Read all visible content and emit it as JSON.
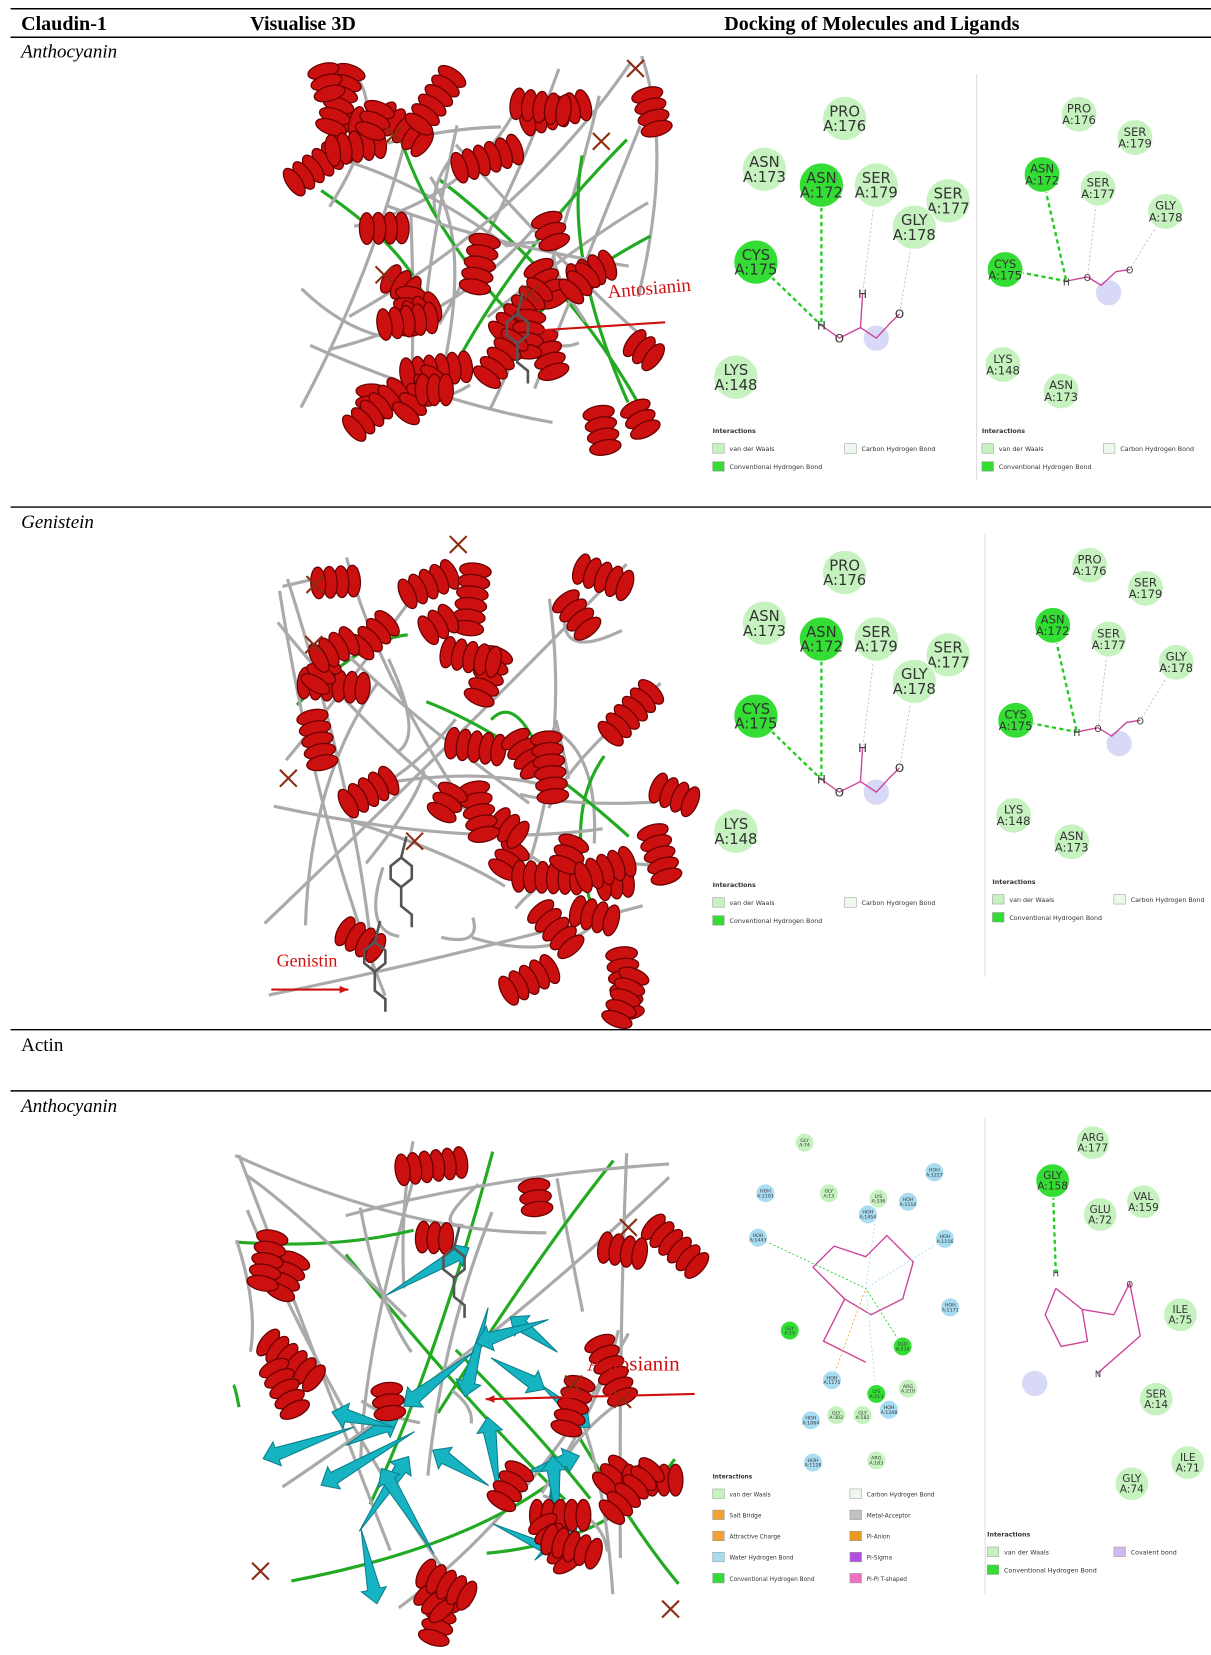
{
  "header": {
    "col1": "Claudin-1",
    "col2": "Visualise 3D",
    "col3": "Docking of Molecules and Ligands"
  },
  "rows": [
    {
      "label": "Anthocyanin",
      "annotation": "Antosianin",
      "docking": [
        {
          "residues": [
            {
              "name": "ASN",
              "pos": "A:173",
              "color": "#c6f2c0"
            },
            {
              "name": "ASN",
              "pos": "A:172",
              "color": "#33dd33"
            },
            {
              "name": "PRO",
              "pos": "A:176",
              "color": "#c6f2c0"
            },
            {
              "name": "SER",
              "pos": "A:179",
              "color": "#c6f2c0"
            },
            {
              "name": "SER",
              "pos": "A:177",
              "color": "#c6f2c0"
            },
            {
              "name": "GLY",
              "pos": "A:178",
              "color": "#c6f2c0"
            },
            {
              "name": "CYS",
              "pos": "A:175",
              "color": "#33dd33"
            },
            {
              "name": "LYS",
              "pos": "A:148",
              "color": "#c6f2c0"
            }
          ],
          "atoms": [
            "H",
            "O",
            "H",
            "O"
          ],
          "legend_title": "Interactions",
          "legend": [
            {
              "label": "van der Waals",
              "color": "#c6f2c0"
            },
            {
              "label": "Carbon Hydrogen Bond",
              "color": "#eef9ee"
            },
            {
              "label": "Conventional Hydrogen Bond",
              "color": "#33dd33"
            }
          ]
        },
        {
          "residues": [
            {
              "name": "PRO",
              "pos": "A:176",
              "color": "#c6f2c0"
            },
            {
              "name": "SER",
              "pos": "A:179",
              "color": "#c6f2c0"
            },
            {
              "name": "ASN",
              "pos": "A:172",
              "color": "#33dd33"
            },
            {
              "name": "SER",
              "pos": "A:177",
              "color": "#c6f2c0"
            },
            {
              "name": "GLY",
              "pos": "A:178",
              "color": "#c6f2c0"
            },
            {
              "name": "CYS",
              "pos": "A:175",
              "color": "#33dd33"
            },
            {
              "name": "LYS",
              "pos": "A:148",
              "color": "#c6f2c0"
            },
            {
              "name": "ASN",
              "pos": "A:173",
              "color": "#c6f2c0"
            }
          ],
          "atoms": [
            "H",
            "O",
            "O"
          ],
          "legend_title": "Interactions",
          "legend": [
            {
              "label": "van der Waals",
              "color": "#c6f2c0"
            },
            {
              "label": "Carbon Hydrogen Bond",
              "color": "#eef9ee"
            },
            {
              "label": "Conventional Hydrogen Bond",
              "color": "#33dd33"
            }
          ]
        }
      ]
    },
    {
      "label": "Genistein",
      "annotation": "Genistin",
      "docking": [
        {
          "residues": [
            {
              "name": "ASN",
              "pos": "A:173",
              "color": "#c6f2c0"
            },
            {
              "name": "ASN",
              "pos": "A:172",
              "color": "#33dd33"
            },
            {
              "name": "PRO",
              "pos": "A:176",
              "color": "#c6f2c0"
            },
            {
              "name": "SER",
              "pos": "A:179",
              "color": "#c6f2c0"
            },
            {
              "name": "SER",
              "pos": "A:177",
              "color": "#c6f2c0"
            },
            {
              "name": "GLY",
              "pos": "A:178",
              "color": "#c6f2c0"
            },
            {
              "name": "CYS",
              "pos": "A:175",
              "color": "#33dd33"
            },
            {
              "name": "LYS",
              "pos": "A:148",
              "color": "#c6f2c0"
            }
          ],
          "atoms": [
            "H",
            "O",
            "H",
            "O"
          ],
          "legend_title": "Interactions",
          "legend": [
            {
              "label": "van der Waals",
              "color": "#c6f2c0"
            },
            {
              "label": "Carbon Hydrogen Bond",
              "color": "#eef9ee"
            },
            {
              "label": "Conventional Hydrogen Bond",
              "color": "#33dd33"
            }
          ]
        },
        {
          "residues": [
            {
              "name": "PRO",
              "pos": "A:176",
              "color": "#c6f2c0"
            },
            {
              "name": "SER",
              "pos": "A:179",
              "color": "#c6f2c0"
            },
            {
              "name": "ASN",
              "pos": "A:172",
              "color": "#33dd33"
            },
            {
              "name": "SER",
              "pos": "A:177",
              "color": "#c6f2c0"
            },
            {
              "name": "GLY",
              "pos": "A:178",
              "color": "#c6f2c0"
            },
            {
              "name": "CYS",
              "pos": "A:175",
              "color": "#33dd33"
            },
            {
              "name": "LYS",
              "pos": "A:148",
              "color": "#c6f2c0"
            },
            {
              "name": "ASN",
              "pos": "A:173",
              "color": "#c6f2c0"
            }
          ],
          "atoms": [
            "H",
            "O",
            "O"
          ],
          "legend_title": "Interactions",
          "legend": [
            {
              "label": "van der Waals",
              "color": "#c6f2c0"
            },
            {
              "label": "Carbon Hydrogen Bond",
              "color": "#eef9ee"
            },
            {
              "label": "Conventional Hydrogen Bond",
              "color": "#33dd33"
            }
          ]
        }
      ]
    },
    {
      "group": "Actin"
    },
    {
      "label": "Anthocyanin",
      "annotation": "Antosianin",
      "docking": [
        {
          "residues": [
            {
              "name": "GLY",
              "pos": "A:74",
              "color": "#c6f2c0"
            },
            {
              "name": "HOH",
              "pos": "A:1227",
              "color": "#a8dcf0"
            },
            {
              "name": "GLY",
              "pos": "A:13",
              "color": "#c6f2c0"
            },
            {
              "name": "LYS",
              "pos": "A:336",
              "color": "#c6f2c0"
            },
            {
              "name": "HOH",
              "pos": "A:1110",
              "color": "#a8dcf0"
            },
            {
              "name": "HOH",
              "pos": "A:1454",
              "color": "#a8dcf0"
            },
            {
              "name": "HOH",
              "pos": "A:1156",
              "color": "#a8dcf0"
            },
            {
              "name": "HOH",
              "pos": "A:1171",
              "color": "#a8dcf0"
            },
            {
              "name": "ARG",
              "pos": "A:210",
              "color": "#c6f2c0"
            },
            {
              "name": "HOH",
              "pos": "A:1208",
              "color": "#a8dcf0"
            },
            {
              "name": "ARG",
              "pos": "A:183",
              "color": "#c6f2c0"
            },
            {
              "name": "HOH",
              "pos": "A:1128",
              "color": "#a8dcf0"
            },
            {
              "name": "HOH",
              "pos": "A:1064",
              "color": "#a8dcf0"
            },
            {
              "name": "HOH",
              "pos": "A:1175",
              "color": "#a8dcf0"
            },
            {
              "name": "GLY",
              "pos": "A:302",
              "color": "#c6f2c0"
            },
            {
              "name": "GLY",
              "pos": "A:182",
              "color": "#c6f2c0"
            },
            {
              "name": "LYS",
              "pos": "A:213",
              "color": "#33dd33"
            },
            {
              "name": "GLU",
              "pos": "A:214",
              "color": "#33dd33"
            },
            {
              "name": "HOH",
              "pos": "A:1101",
              "color": "#a8dcf0"
            },
            {
              "name": "HOH",
              "pos": "A:1443",
              "color": "#a8dcf0"
            },
            {
              "name": "GLY",
              "pos": "A:15",
              "color": "#33dd33"
            }
          ],
          "atoms": [],
          "legend_title": "Interactions",
          "legend": [
            {
              "label": "van der Waals",
              "color": "#c6f2c0"
            },
            {
              "label": "Carbon Hydrogen Bond",
              "color": "#eef9ee"
            },
            {
              "label": "Salt Bridge",
              "color": "#f5a030"
            },
            {
              "label": "Metal-Acceptor",
              "color": "#c0c0c0"
            },
            {
              "label": "Attractive Charge",
              "color": "#f5a030"
            },
            {
              "label": "Pi-Anion",
              "color": "#e89a20"
            },
            {
              "label": "Water Hydrogen Bond",
              "color": "#a8dcf0"
            },
            {
              "label": "Pi-Sigma",
              "color": "#b04fe0"
            },
            {
              "label": "Conventional Hydrogen Bond",
              "color": "#33dd33"
            },
            {
              "label": "Pi-Pi T-shaped",
              "color": "#f070c0"
            }
          ]
        },
        {
          "residues": [
            {
              "name": "ARG",
              "pos": "A:177",
              "color": "#c6f2c0"
            },
            {
              "name": "GLY",
              "pos": "A:158",
              "color": "#33dd33"
            },
            {
              "name": "GLU",
              "pos": "A:72",
              "color": "#c6f2c0"
            },
            {
              "name": "VAL",
              "pos": "A:159",
              "color": "#c6f2c0"
            },
            {
              "name": "ILE",
              "pos": "A:75",
              "color": "#c6f2c0"
            },
            {
              "name": "SER",
              "pos": "A:14",
              "color": "#c6f2c0"
            },
            {
              "name": "ILE",
              "pos": "A:71",
              "color": "#c6f2c0"
            },
            {
              "name": "GLY",
              "pos": "A:74",
              "color": "#c6f2c0"
            }
          ],
          "atoms": [
            "H",
            "O",
            "N"
          ],
          "legend_title": "Interactions",
          "legend": [
            {
              "label": "van der Waals",
              "color": "#c6f2c0"
            },
            {
              "label": "Covalent bond",
              "color": "#d0b8f0"
            },
            {
              "label": "Conventional Hydrogen Bond",
              "color": "#33dd33"
            }
          ]
        }
      ]
    }
  ]
}
